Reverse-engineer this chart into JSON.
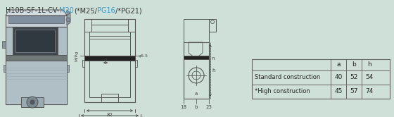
{
  "bg_color": "#cfe0d8",
  "title_parts": [
    {
      "text": "H10B-SF-1L-CV-",
      "color": "#333333"
    },
    {
      "text": "M20",
      "color": "#3399cc"
    },
    {
      "text": "(*M25/",
      "color": "#333333"
    },
    {
      "text": "PG16",
      "color": "#3399cc"
    },
    {
      "text": "/*PG21)",
      "color": "#333333"
    }
  ],
  "headers": [
    "",
    "a",
    "b",
    "h"
  ],
  "rows": [
    [
      "Standard construction",
      "40",
      "52",
      "54"
    ],
    [
      "*High construction",
      "45",
      "57",
      "74"
    ]
  ],
  "line_color": "#555555",
  "dim_color": "#444444",
  "fill_light": "#c8d8d0",
  "fill_mid": "#b0c4bc",
  "fill_dark": "#606870"
}
